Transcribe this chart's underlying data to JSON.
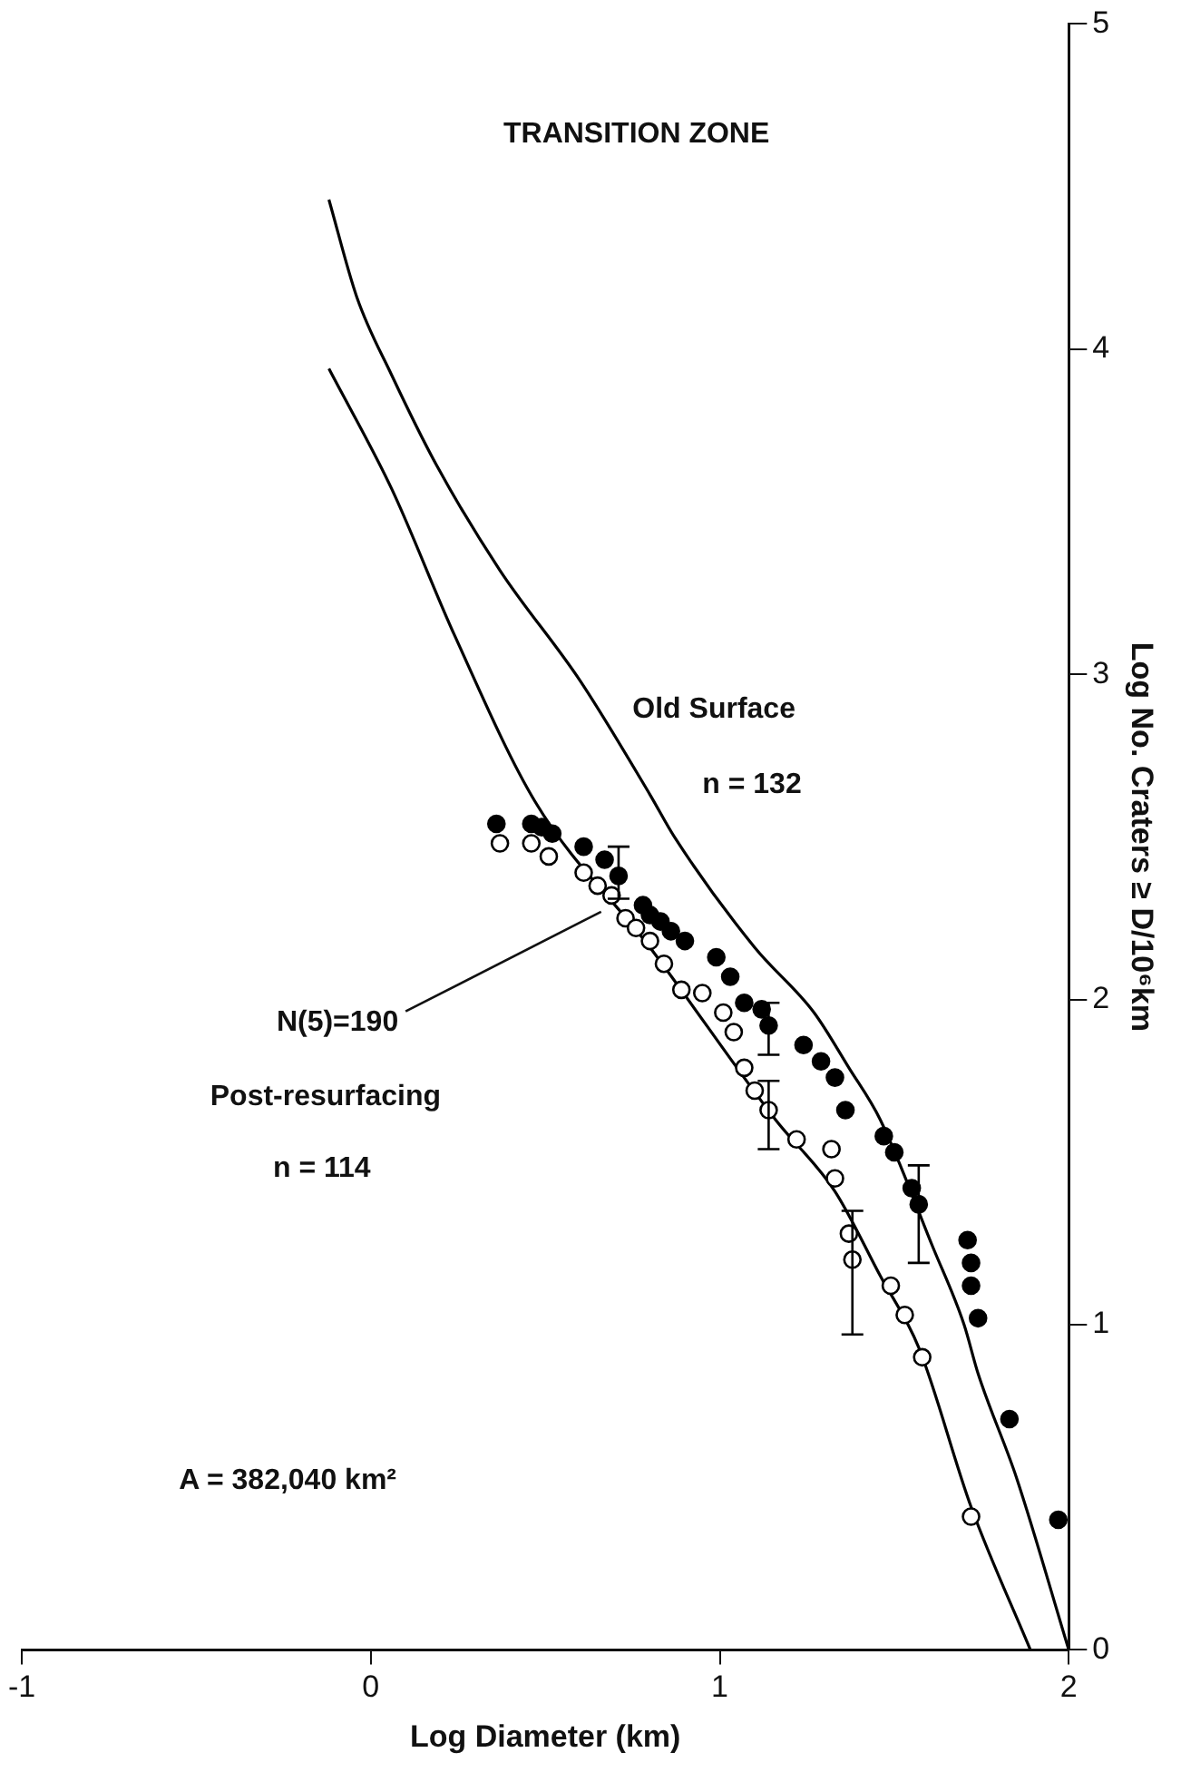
{
  "chart_data": {
    "type": "scatter",
    "xlabel": "Log Diameter (km)",
    "ylabel": "Log No. Craters ≥ D/10⁶km",
    "xlim": [
      -1,
      2
    ],
    "xticks": [
      -1,
      0,
      1,
      2
    ],
    "ylim": [
      0,
      5
    ],
    "yticks": [
      0,
      1,
      2,
      3,
      4,
      5
    ],
    "legend": false,
    "grid": false,
    "series": [
      {
        "marker": "circle",
        "color": "#000000",
        "x": [
          0.36,
          0.46,
          0.49,
          0.52,
          0.61,
          0.67,
          0.71,
          0.78,
          0.8,
          0.83,
          0.86,
          0.9,
          0.99,
          1.03,
          1.07,
          1.12,
          1.14,
          1.24,
          1.29,
          1.33,
          1.36,
          1.47,
          1.5,
          1.55,
          1.57,
          1.71,
          1.72,
          1.72,
          1.74,
          1.83,
          1.97
        ],
        "values": [
          2.54,
          2.54,
          2.53,
          2.51,
          2.47,
          2.43,
          2.38,
          2.29,
          2.26,
          2.24,
          2.21,
          2.18,
          2.13,
          2.07,
          1.99,
          1.97,
          1.92,
          1.86,
          1.81,
          1.76,
          1.66,
          1.58,
          1.53,
          1.42,
          1.37,
          1.26,
          1.19,
          1.12,
          1.02,
          0.71,
          0.4
        ],
        "errors": [
          null,
          null,
          null,
          null,
          null,
          null,
          [
            2.31,
            2.47
          ],
          null,
          null,
          null,
          null,
          null,
          null,
          null,
          null,
          null,
          [
            1.83,
            1.99
          ],
          null,
          null,
          null,
          null,
          null,
          null,
          null,
          [
            1.19,
            1.49
          ],
          null,
          null,
          null,
          null,
          null,
          null
        ]
      },
      {
        "marker": "circle",
        "color": "#ffffff",
        "x": [
          0.37,
          0.46,
          0.51,
          0.61,
          0.65,
          0.69,
          0.73,
          0.76,
          0.8,
          0.84,
          0.89,
          0.95,
          1.01,
          1.04,
          1.07,
          1.1,
          1.14,
          1.22,
          1.32,
          1.33,
          1.37,
          1.38,
          1.49,
          1.53,
          1.58,
          1.72
        ],
        "values": [
          2.48,
          2.48,
          2.44,
          2.39,
          2.35,
          2.32,
          2.25,
          2.22,
          2.18,
          2.11,
          2.03,
          2.02,
          1.96,
          1.9,
          1.79,
          1.72,
          1.66,
          1.57,
          1.54,
          1.45,
          1.28,
          1.2,
          1.12,
          1.03,
          0.9,
          0.41
        ],
        "errors": [
          null,
          null,
          null,
          null,
          null,
          null,
          null,
          null,
          null,
          null,
          null,
          null,
          null,
          null,
          null,
          null,
          [
            1.54,
            1.75
          ],
          null,
          null,
          null,
          null,
          [
            0.97,
            1.35
          ],
          null,
          null,
          null,
          null
        ]
      },
      {
        "type": "line",
        "color": "#000000",
        "x": [
          -0.12,
          -0.04,
          0.06,
          0.19,
          0.37,
          0.6,
          0.8,
          0.87,
          1.1,
          1.27,
          1.37,
          1.46,
          1.61,
          1.7,
          1.74,
          1.85,
          2.0
        ],
        "values": [
          4.46,
          4.16,
          3.92,
          3.64,
          3.32,
          2.98,
          2.63,
          2.5,
          2.16,
          1.96,
          1.79,
          1.63,
          1.24,
          1.0,
          0.85,
          0.53,
          0.0
        ]
      },
      {
        "type": "line",
        "color": "#000000",
        "x": [
          -0.12,
          0.06,
          0.24,
          0.47,
          0.8,
          1.16,
          1.33,
          1.46,
          1.57,
          1.72,
          1.89
        ],
        "values": [
          3.94,
          3.57,
          3.12,
          2.61,
          2.16,
          1.63,
          1.41,
          1.15,
          0.93,
          0.44,
          0.0
        ]
      }
    ],
    "annotations": [
      "TRANSITION ZONE",
      "Old Surface",
      "n = 132",
      "N(5)=190",
      "Post-resurfacing",
      "n = 114",
      "A = 382,040 km²"
    ]
  }
}
